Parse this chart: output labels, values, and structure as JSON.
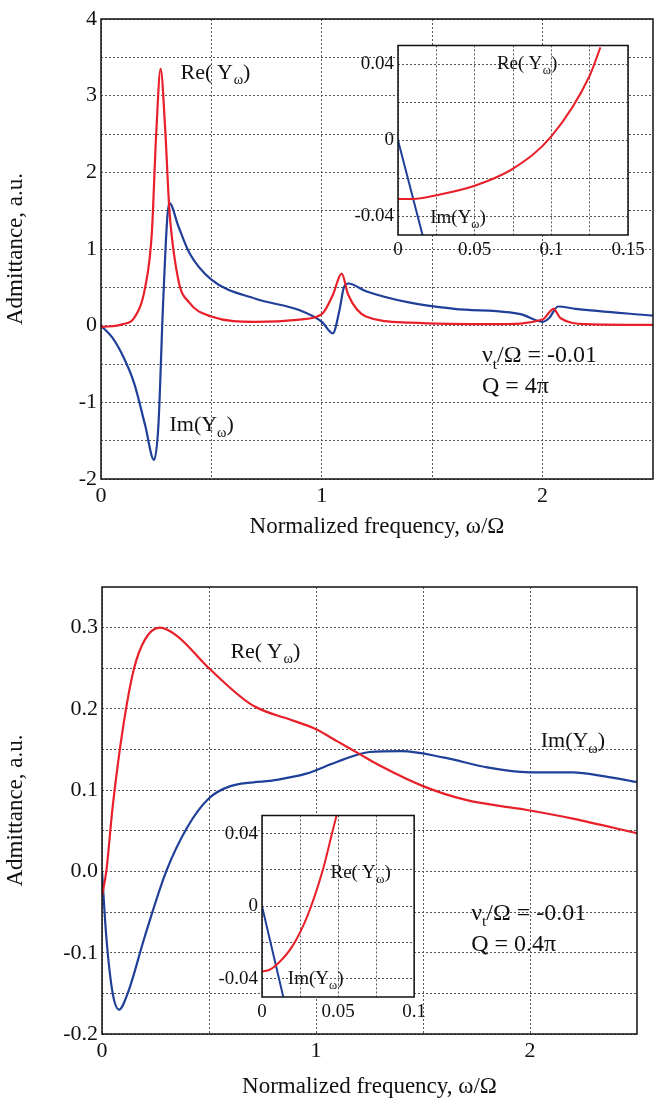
{
  "chart_data": [
    {
      "type": "line",
      "xlabel": "Normalized frequency, ω/Ω",
      "ylabel": "Admittance, a.u.",
      "xlim": [
        0,
        2.5
      ],
      "ylim": [
        -2,
        4
      ],
      "xticks": [
        0,
        {
          "value": 0.5,
          "label": null
        },
        1,
        {
          "value": 1.5,
          "label": null
        },
        2
      ],
      "yticks": [
        -2,
        {
          "value": -1.5,
          "label": null
        },
        -1,
        {
          "value": -0.5,
          "label": null
        },
        0,
        {
          "value": 0.5,
          "label": null
        },
        1,
        {
          "value": 1.5,
          "label": null
        },
        2,
        {
          "value": 2.5,
          "label": null
        },
        3,
        {
          "value": 3.5,
          "label": null
        },
        4
      ],
      "grid": true,
      "marker": "none",
      "series": [
        {
          "name": "Re( Y$_{ω}$)",
          "color": "#e8202a",
          "x": [
            0,
            0.1,
            0.15,
            0.2,
            0.23,
            0.25,
            0.27,
            0.29,
            0.31,
            0.35,
            0.4,
            0.5,
            0.7,
            0.9,
            1.0,
            1.05,
            1.09,
            1.12,
            1.2,
            1.4,
            1.8,
            2.0,
            2.05,
            2.08,
            2.2,
            2.5
          ],
          "values": [
            -0.02,
            0.02,
            0.1,
            0.5,
            1.2,
            2.5,
            3.35,
            2.6,
            1.5,
            0.6,
            0.3,
            0.12,
            0.05,
            0.08,
            0.15,
            0.4,
            0.68,
            0.4,
            0.12,
            0.04,
            0.02,
            0.08,
            0.22,
            0.1,
            0.02,
            0.01
          ]
        },
        {
          "name": "Im(Y$_{ω}$)",
          "color": "#1f3f99",
          "x": [
            0,
            0.05,
            0.1,
            0.15,
            0.2,
            0.24,
            0.26,
            0.28,
            0.3,
            0.31,
            0.35,
            0.4,
            0.5,
            0.7,
            0.9,
            1.0,
            1.05,
            1.08,
            1.1,
            1.12,
            1.2,
            1.4,
            1.6,
            1.9,
            2.0,
            2.03,
            2.07,
            2.15,
            2.5
          ],
          "values": [
            0,
            -0.15,
            -0.4,
            -0.75,
            -1.3,
            -1.75,
            -1.3,
            0.2,
            1.4,
            1.6,
            1.3,
            0.95,
            0.6,
            0.35,
            0.2,
            0.05,
            -0.1,
            0.2,
            0.5,
            0.55,
            0.45,
            0.3,
            0.22,
            0.15,
            0.05,
            0.1,
            0.25,
            0.22,
            0.13
          ]
        }
      ],
      "annotations": [
        "ν$_{t}$/Ω = -0.01",
        "Q = 4π"
      ]
    },
    {
      "type": "line",
      "xlim": [
        0,
        0.15
      ],
      "ylim": [
        -0.05,
        0.05
      ],
      "xticks": [
        0,
        {
          "value": 0.025,
          "label": null
        },
        0.05,
        {
          "value": 0.075,
          "label": null
        },
        0.1,
        {
          "value": 0.125,
          "label": null
        },
        0.15
      ],
      "yticks": [
        -0.04,
        {
          "value": -0.02,
          "label": null
        },
        0,
        {
          "value": 0.02,
          "label": null
        },
        0.04
      ],
      "grid": true,
      "marker": "none",
      "series": [
        {
          "name": "Re( Y$_{ω}$)",
          "color": "#e8202a",
          "x": [
            0,
            0.01,
            0.025,
            0.05,
            0.075,
            0.1,
            0.125,
            0.132
          ],
          "values": [
            -0.031,
            -0.031,
            -0.029,
            -0.024,
            -0.015,
            0.002,
            0.034,
            0.049
          ]
        },
        {
          "name": "Im(Y$_{ω}$)",
          "color": "#1f3f99",
          "x": [
            0,
            0.016
          ],
          "values": [
            0,
            -0.05
          ]
        }
      ]
    },
    {
      "type": "line",
      "xlabel": "Normalized frequency, ω/Ω",
      "ylabel": "Admittance, a.u.",
      "xlim": [
        0,
        2.5
      ],
      "ylim": [
        -0.2,
        0.35
      ],
      "xticks": [
        0,
        {
          "value": 0.5,
          "label": null
        },
        1,
        {
          "value": 1.5,
          "label": null
        },
        2
      ],
      "yticks": [
        -0.2,
        {
          "value": -0.15,
          "label": null
        },
        -0.1,
        {
          "value": -0.05,
          "label": null
        },
        {
          "value": 0,
          "label": "0.0"
        },
        {
          "value": 0.05,
          "label": null
        },
        0.1,
        {
          "value": 0.15,
          "label": null
        },
        0.2,
        {
          "value": 0.25,
          "label": null
        },
        0.3
      ],
      "grid": true,
      "marker": "none",
      "series": [
        {
          "name": "Re( Y$_{ω}$)",
          "color": "#e8202a",
          "x": [
            0,
            0.02,
            0.05,
            0.1,
            0.15,
            0.2,
            0.27,
            0.35,
            0.5,
            0.7,
            0.9,
            1.0,
            1.1,
            1.2,
            1.3,
            1.5,
            1.7,
            2.0,
            2.2,
            2.5
          ],
          "values": [
            -0.03,
            0.0,
            0.08,
            0.18,
            0.25,
            0.285,
            0.3,
            0.29,
            0.25,
            0.205,
            0.185,
            0.175,
            0.16,
            0.145,
            0.13,
            0.105,
            0.088,
            0.075,
            0.065,
            0.047
          ]
        },
        {
          "name": "Im(Y$_{ω}$)",
          "color": "#1f3f99",
          "x": [
            0,
            0.02,
            0.05,
            0.08,
            0.12,
            0.2,
            0.3,
            0.4,
            0.5,
            0.6,
            0.8,
            0.95,
            1.1,
            1.25,
            1.4,
            1.6,
            1.8,
            2.0,
            2.2,
            2.35,
            2.5
          ],
          "values": [
            0,
            -0.08,
            -0.15,
            -0.17,
            -0.15,
            -0.08,
            0,
            0.055,
            0.09,
            0.105,
            0.112,
            0.12,
            0.135,
            0.147,
            0.148,
            0.14,
            0.128,
            0.122,
            0.122,
            0.117,
            0.11
          ]
        }
      ],
      "annotations": [
        "ν$_{t}$/Ω = -0.01",
        "Q = 0.4π"
      ]
    },
    {
      "type": "line",
      "xlim": [
        0,
        0.1
      ],
      "ylim": [
        -0.05,
        0.05
      ],
      "xticks": [
        0,
        {
          "value": 0.025,
          "label": null
        },
        0.05,
        {
          "value": 0.075,
          "label": null
        },
        0.1
      ],
      "yticks": [
        -0.04,
        {
          "value": -0.02,
          "label": null
        },
        0,
        {
          "value": 0.02,
          "label": null
        },
        0.04
      ],
      "grid": true,
      "marker": "none",
      "series": [
        {
          "name": "Re( Y$_{ω}$)",
          "color": "#e8202a",
          "x": [
            0,
            0.005,
            0.01,
            0.02,
            0.03,
            0.04,
            0.046,
            0.049
          ],
          "values": [
            -0.036,
            -0.035,
            -0.032,
            -0.022,
            -0.005,
            0.02,
            0.04,
            0.05
          ]
        },
        {
          "name": "Im(Y$_{ω}$)",
          "color": "#1f3f99",
          "x": [
            0,
            0.014
          ],
          "values": [
            0,
            -0.05
          ]
        }
      ]
    }
  ]
}
